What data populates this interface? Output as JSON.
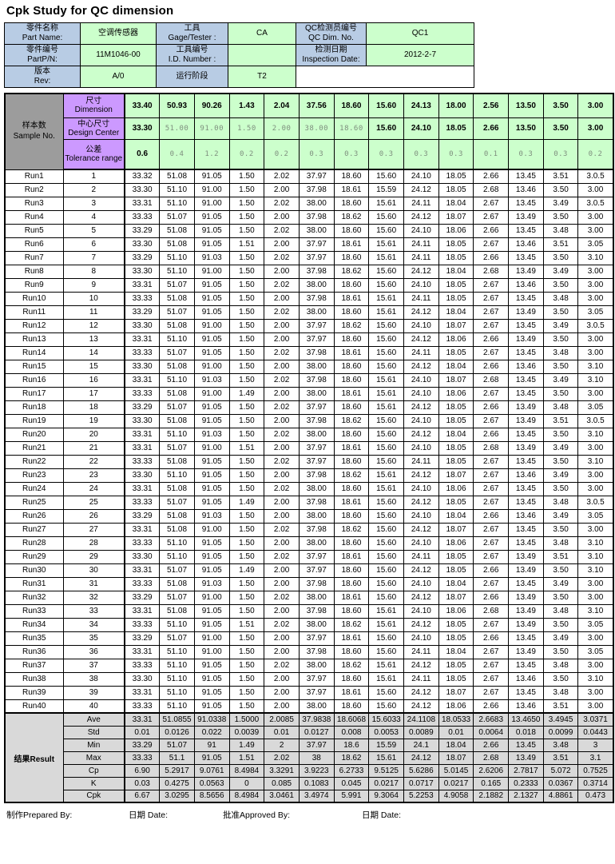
{
  "title": "Cpk Study for QC dimension",
  "colors": {
    "label_blue": "#B8CCE4",
    "value_green": "#CCFFCC",
    "header_purple": "#CC99FF",
    "corner_gray": "#9C9C9C",
    "result_gray": "#D9D9D9",
    "muted_text": "#7E8F7E"
  },
  "info_table": {
    "rows": [
      {
        "cells": [
          {
            "zh": "零件名称",
            "en": "Part Name:"
          },
          {
            "text": "空调传感器"
          },
          {
            "zh": "工具",
            "en": "Gage/Tester :"
          },
          {
            "text": "CA"
          },
          {
            "zh": "QC检测员编号",
            "en": "QC Dim. No."
          },
          {
            "text": "QC1"
          }
        ]
      },
      {
        "cells": [
          {
            "zh": "零件编号",
            "en": "PartP/N:"
          },
          {
            "text": "11M1046-00"
          },
          {
            "zh": "工具编号",
            "en": "I.D. Number :"
          },
          {
            "text": ""
          },
          {
            "zh": "检测日期",
            "en": "Inspection Date:"
          },
          {
            "text": "2012-2-7"
          }
        ]
      },
      {
        "cells": [
          {
            "zh": "版本",
            "en": "Rev:"
          },
          {
            "text": "A/0"
          },
          {
            "zh": "运行阶段",
            "en": ""
          },
          {
            "text": "T2"
          }
        ]
      }
    ]
  },
  "main_table": {
    "corner": {
      "zh": "样本数",
      "en": "Sample No."
    },
    "header_rows": [
      {
        "zh": "尺寸",
        "en": "Dimension",
        "values": [
          "33.40",
          "50.93",
          "90.26",
          "1.43",
          "2.04",
          "37.56",
          "18.60",
          "15.60",
          "24.13",
          "18.00",
          "2.56",
          "13.50",
          "3.50",
          "3.00"
        ],
        "muted": []
      },
      {
        "zh": "中心尺寸",
        "en": "Design Center",
        "values": [
          "33.30",
          "51.00",
          "91.00",
          "1.50",
          "2.00",
          "38.00",
          "18.60",
          "15.60",
          "24.10",
          "18.05",
          "2.66",
          "13.50",
          "3.50",
          "3.00"
        ],
        "muted": [
          1,
          2,
          3,
          4,
          5,
          6
        ]
      },
      {
        "zh": "公差",
        "en": "Tolerance range",
        "values": [
          "0.6",
          "0.4",
          "1.2",
          "0.2",
          "0.2",
          "0.3",
          "0.3",
          "0.3",
          "0.3",
          "0.3",
          "0.1",
          "0.3",
          "0.3",
          "0.2"
        ],
        "muted": [
          1,
          2,
          3,
          4,
          5,
          6,
          7,
          8,
          9,
          10,
          11,
          12,
          13
        ]
      }
    ],
    "runs": [
      {
        "label": "Run1",
        "no": "1",
        "values": [
          "33.32",
          "51.08",
          "91.05",
          "1.50",
          "2.02",
          "37.97",
          "18.60",
          "15.60",
          "24.10",
          "18.05",
          "2.66",
          "13.45",
          "3.51",
          "3.0.5"
        ]
      },
      {
        "label": "Run2",
        "no": "2",
        "values": [
          "33.30",
          "51.10",
          "91.00",
          "1.50",
          "2.00",
          "37.98",
          "18.61",
          "15.59",
          "24.12",
          "18.05",
          "2.68",
          "13.46",
          "3.50",
          "3.00"
        ]
      },
      {
        "label": "Run3",
        "no": "3",
        "values": [
          "33.31",
          "51.10",
          "91.00",
          "1.50",
          "2.02",
          "38.00",
          "18.60",
          "15.61",
          "24.11",
          "18.04",
          "2.67",
          "13.45",
          "3.49",
          "3.0.5"
        ]
      },
      {
        "label": "Run4",
        "no": "4",
        "values": [
          "33.33",
          "51.07",
          "91.05",
          "1.50",
          "2.00",
          "37.98",
          "18.62",
          "15.60",
          "24.12",
          "18.07",
          "2.67",
          "13.49",
          "3.50",
          "3.00"
        ]
      },
      {
        "label": "Run5",
        "no": "5",
        "values": [
          "33.29",
          "51.08",
          "91.05",
          "1.50",
          "2.02",
          "38.00",
          "18.60",
          "15.60",
          "24.10",
          "18.06",
          "2.66",
          "13.45",
          "3.48",
          "3.00"
        ]
      },
      {
        "label": "Run6",
        "no": "6",
        "values": [
          "33.30",
          "51.08",
          "91.05",
          "1.51",
          "2.00",
          "37.97",
          "18.61",
          "15.61",
          "24.11",
          "18.05",
          "2.67",
          "13.46",
          "3.51",
          "3.05"
        ]
      },
      {
        "label": "Run7",
        "no": "7",
        "values": [
          "33.29",
          "51.10",
          "91.03",
          "1.50",
          "2.02",
          "37.97",
          "18.60",
          "15.61",
          "24.11",
          "18.05",
          "2.66",
          "13.45",
          "3.50",
          "3.10"
        ]
      },
      {
        "label": "Run8",
        "no": "8",
        "values": [
          "33.30",
          "51.10",
          "91.00",
          "1.50",
          "2.00",
          "37.98",
          "18.62",
          "15.60",
          "24.12",
          "18.04",
          "2.68",
          "13.49",
          "3.49",
          "3.00"
        ]
      },
      {
        "label": "Run9",
        "no": "9",
        "values": [
          "33.31",
          "51.07",
          "91.05",
          "1.50",
          "2.02",
          "38.00",
          "18.60",
          "15.60",
          "24.10",
          "18.05",
          "2.67",
          "13.46",
          "3.50",
          "3.00"
        ]
      },
      {
        "label": "Run10",
        "no": "10",
        "values": [
          "33.33",
          "51.08",
          "91.05",
          "1.50",
          "2.00",
          "37.98",
          "18.61",
          "15.61",
          "24.11",
          "18.05",
          "2.67",
          "13.45",
          "3.48",
          "3.00"
        ]
      },
      {
        "label": "Run11",
        "no": "11",
        "values": [
          "33.29",
          "51.07",
          "91.05",
          "1.50",
          "2.02",
          "38.00",
          "18.60",
          "15.61",
          "24.12",
          "18.04",
          "2.67",
          "13.49",
          "3.50",
          "3.05"
        ]
      },
      {
        "label": "Run12",
        "no": "12",
        "values": [
          "33.30",
          "51.08",
          "91.00",
          "1.50",
          "2.00",
          "37.97",
          "18.62",
          "15.60",
          "24.10",
          "18.07",
          "2.67",
          "13.45",
          "3.49",
          "3.0.5"
        ]
      },
      {
        "label": "Run13",
        "no": "13",
        "values": [
          "33.31",
          "51.10",
          "91.05",
          "1.50",
          "2.00",
          "37.97",
          "18.60",
          "15.60",
          "24.12",
          "18.06",
          "2.66",
          "13.49",
          "3.50",
          "3.00"
        ]
      },
      {
        "label": "Run14",
        "no": "14",
        "values": [
          "33.33",
          "51.07",
          "91.05",
          "1.50",
          "2.02",
          "37.98",
          "18.61",
          "15.60",
          "24.11",
          "18.05",
          "2.67",
          "13.45",
          "3.48",
          "3.00"
        ]
      },
      {
        "label": "Run15",
        "no": "15",
        "values": [
          "33.30",
          "51.08",
          "91.00",
          "1.50",
          "2.00",
          "38.00",
          "18.60",
          "15.60",
          "24.12",
          "18.04",
          "2.66",
          "13.46",
          "3.50",
          "3.10"
        ]
      },
      {
        "label": "Run16",
        "no": "16",
        "values": [
          "33.31",
          "51.10",
          "91.03",
          "1.50",
          "2.02",
          "37.98",
          "18.60",
          "15.61",
          "24.10",
          "18.07",
          "2.68",
          "13.45",
          "3.49",
          "3.10"
        ]
      },
      {
        "label": "Run17",
        "no": "17",
        "values": [
          "33.33",
          "51.08",
          "91.00",
          "1.49",
          "2.00",
          "38.00",
          "18.61",
          "15.61",
          "24.10",
          "18.06",
          "2.67",
          "13.45",
          "3.50",
          "3.00"
        ]
      },
      {
        "label": "Run18",
        "no": "18",
        "values": [
          "33.29",
          "51.07",
          "91.05",
          "1.50",
          "2.02",
          "37.97",
          "18.60",
          "15.61",
          "24.12",
          "18.05",
          "2.66",
          "13.49",
          "3.48",
          "3.05"
        ]
      },
      {
        "label": "Run19",
        "no": "19",
        "values": [
          "33.30",
          "51.08",
          "91.05",
          "1.50",
          "2.00",
          "37.98",
          "18.62",
          "15.60",
          "24.10",
          "18.05",
          "2.67",
          "13.49",
          "3.51",
          "3.0.5"
        ]
      },
      {
        "label": "Run20",
        "no": "20",
        "values": [
          "33.31",
          "51.10",
          "91.03",
          "1.50",
          "2.02",
          "38.00",
          "18.60",
          "15.60",
          "24.12",
          "18.04",
          "2.66",
          "13.45",
          "3.50",
          "3.10"
        ]
      },
      {
        "label": "Run21",
        "no": "21",
        "values": [
          "33.31",
          "51.07",
          "91.00",
          "1.51",
          "2.00",
          "37.97",
          "18.61",
          "15.60",
          "24.10",
          "18.05",
          "2.68",
          "13.49",
          "3.49",
          "3.00"
        ]
      },
      {
        "label": "Run22",
        "no": "22",
        "values": [
          "33.33",
          "51.08",
          "91.05",
          "1.50",
          "2.02",
          "37.97",
          "18.60",
          "15.60",
          "24.11",
          "18.05",
          "2.67",
          "13.45",
          "3.50",
          "3.10"
        ]
      },
      {
        "label": "Run23",
        "no": "23",
        "values": [
          "33.30",
          "51.10",
          "91.05",
          "1.50",
          "2.00",
          "37.98",
          "18.62",
          "15.61",
          "24.12",
          "18.07",
          "2.67",
          "13.46",
          "3.49",
          "3.00"
        ]
      },
      {
        "label": "Run24",
        "no": "24",
        "values": [
          "33.31",
          "51.08",
          "91.05",
          "1.50",
          "2.02",
          "38.00",
          "18.60",
          "15.61",
          "24.10",
          "18.06",
          "2.67",
          "13.45",
          "3.50",
          "3.00"
        ]
      },
      {
        "label": "Run25",
        "no": "25",
        "values": [
          "33.33",
          "51.07",
          "91.05",
          "1.49",
          "2.00",
          "37.98",
          "18.61",
          "15.60",
          "24.12",
          "18.05",
          "2.67",
          "13.45",
          "3.48",
          "3.0.5"
        ]
      },
      {
        "label": "Run26",
        "no": "26",
        "values": [
          "33.29",
          "51.08",
          "91.03",
          "1.50",
          "2.00",
          "38.00",
          "18.60",
          "15.60",
          "24.10",
          "18.04",
          "2.66",
          "13.46",
          "3.49",
          "3.05"
        ]
      },
      {
        "label": "Run27",
        "no": "27",
        "values": [
          "33.31",
          "51.08",
          "91.00",
          "1.50",
          "2.02",
          "37.98",
          "18.62",
          "15.60",
          "24.12",
          "18.07",
          "2.67",
          "13.45",
          "3.50",
          "3.00"
        ]
      },
      {
        "label": "Run28",
        "no": "28",
        "values": [
          "33.33",
          "51.10",
          "91.05",
          "1.50",
          "2.00",
          "38.00",
          "18.60",
          "15.60",
          "24.10",
          "18.06",
          "2.67",
          "13.45",
          "3.48",
          "3.10"
        ]
      },
      {
        "label": "Run29",
        "no": "29",
        "values": [
          "33.30",
          "51.10",
          "91.05",
          "1.50",
          "2.02",
          "37.97",
          "18.61",
          "15.60",
          "24.11",
          "18.05",
          "2.67",
          "13.49",
          "3.51",
          "3.10"
        ]
      },
      {
        "label": "Run30",
        "no": "30",
        "values": [
          "33.31",
          "51.07",
          "91.05",
          "1.49",
          "2.00",
          "37.97",
          "18.60",
          "15.60",
          "24.12",
          "18.05",
          "2.66",
          "13.49",
          "3.50",
          "3.10"
        ]
      },
      {
        "label": "Run31",
        "no": "31",
        "values": [
          "33.33",
          "51.08",
          "91.03",
          "1.50",
          "2.00",
          "37.98",
          "18.60",
          "15.60",
          "24.10",
          "18.04",
          "2.67",
          "13.45",
          "3.49",
          "3.00"
        ]
      },
      {
        "label": "Run32",
        "no": "32",
        "values": [
          "33.29",
          "51.07",
          "91.00",
          "1.50",
          "2.02",
          "38.00",
          "18.61",
          "15.60",
          "24.12",
          "18.07",
          "2.66",
          "13.49",
          "3.50",
          "3.00"
        ]
      },
      {
        "label": "Run33",
        "no": "33",
        "values": [
          "33.31",
          "51.08",
          "91.05",
          "1.50",
          "2.00",
          "37.98",
          "18.60",
          "15.61",
          "24.10",
          "18.06",
          "2.68",
          "13.49",
          "3.48",
          "3.10"
        ]
      },
      {
        "label": "Run34",
        "no": "34",
        "values": [
          "33.33",
          "51.10",
          "91.05",
          "1.51",
          "2.02",
          "38.00",
          "18.62",
          "15.61",
          "24.12",
          "18.05",
          "2.67",
          "13.49",
          "3.50",
          "3.05"
        ]
      },
      {
        "label": "Run35",
        "no": "35",
        "values": [
          "33.29",
          "51.07",
          "91.00",
          "1.50",
          "2.00",
          "37.97",
          "18.61",
          "15.60",
          "24.10",
          "18.05",
          "2.66",
          "13.45",
          "3.49",
          "3.00"
        ]
      },
      {
        "label": "Run36",
        "no": "36",
        "values": [
          "33.31",
          "51.10",
          "91.00",
          "1.50",
          "2.00",
          "37.98",
          "18.60",
          "15.60",
          "24.11",
          "18.04",
          "2.67",
          "13.49",
          "3.50",
          "3.05"
        ]
      },
      {
        "label": "Run37",
        "no": "37",
        "values": [
          "33.33",
          "51.10",
          "91.05",
          "1.50",
          "2.02",
          "38.00",
          "18.62",
          "15.61",
          "24.12",
          "18.05",
          "2.67",
          "13.45",
          "3.48",
          "3.00"
        ]
      },
      {
        "label": "Run38",
        "no": "38",
        "values": [
          "33.30",
          "51.10",
          "91.05",
          "1.50",
          "2.00",
          "37.97",
          "18.60",
          "15.61",
          "24.11",
          "18.05",
          "2.67",
          "13.46",
          "3.50",
          "3.10"
        ]
      },
      {
        "label": "Run39",
        "no": "39",
        "values": [
          "33.31",
          "51.10",
          "91.05",
          "1.50",
          "2.00",
          "37.97",
          "18.61",
          "15.60",
          "24.12",
          "18.07",
          "2.67",
          "13.45",
          "3.48",
          "3.00"
        ]
      },
      {
        "label": "Run40",
        "no": "40",
        "values": [
          "33.33",
          "51.10",
          "91.05",
          "1.50",
          "2.00",
          "38.00",
          "18.60",
          "15.60",
          "24.12",
          "18.06",
          "2.66",
          "13.46",
          "3.51",
          "3.00"
        ]
      }
    ],
    "result_label": {
      "zh": "结果",
      "en": "Result"
    },
    "results": [
      {
        "label": "Ave",
        "values": [
          "33.31",
          "51.0855",
          "91.0338",
          "1.5000",
          "2.0085",
          "37.9838",
          "18.6068",
          "15.6033",
          "24.1108",
          "18.0533",
          "2.6683",
          "13.4650",
          "3.4945",
          "3.0371"
        ]
      },
      {
        "label": "Std",
        "values": [
          "0.01",
          "0.0126",
          "0.022",
          "0.0039",
          "0.01",
          "0.0127",
          "0.008",
          "0.0053",
          "0.0089",
          "0.01",
          "0.0064",
          "0.018",
          "0.0099",
          "0.0443"
        ]
      },
      {
        "label": "Min",
        "values": [
          "33.29",
          "51.07",
          "91",
          "1.49",
          "2",
          "37.97",
          "18.6",
          "15.59",
          "24.1",
          "18.04",
          "2.66",
          "13.45",
          "3.48",
          "3"
        ]
      },
      {
        "label": "Max",
        "values": [
          "33.33",
          "51.1",
          "91.05",
          "1.51",
          "2.02",
          "38",
          "18.62",
          "15.61",
          "24.12",
          "18.07",
          "2.68",
          "13.49",
          "3.51",
          "3.1"
        ]
      },
      {
        "label": "Cp",
        "values": [
          "6.90",
          "5.2917",
          "9.0761",
          "8.4984",
          "3.3291",
          "3.9223",
          "6.2733",
          "9.5125",
          "5.6286",
          "5.0145",
          "2.6206",
          "2.7817",
          "5.072",
          "0.7525"
        ]
      },
      {
        "label": "K",
        "values": [
          "0.03",
          "0.4275",
          "0.0563",
          "0",
          "0.085",
          "0.1083",
          "0.045",
          "0.0217",
          "0.0717",
          "0.0217",
          "0.165",
          "0.2333",
          "0.0367",
          "0.3714"
        ]
      },
      {
        "label": "Cpk",
        "values": [
          "6.67",
          "3.0295",
          "8.5656",
          "8.4984",
          "3.0461",
          "3.4974",
          "5.991",
          "9.3064",
          "5.2253",
          "4.9058",
          "2.1882",
          "2.1327",
          "4.8861",
          "0.473"
        ]
      }
    ]
  },
  "footer": {
    "prepared": "制作Prepared By:",
    "date1": "日期 Date:",
    "approved": "批准Approved By:",
    "date2": "日期 Date:"
  }
}
